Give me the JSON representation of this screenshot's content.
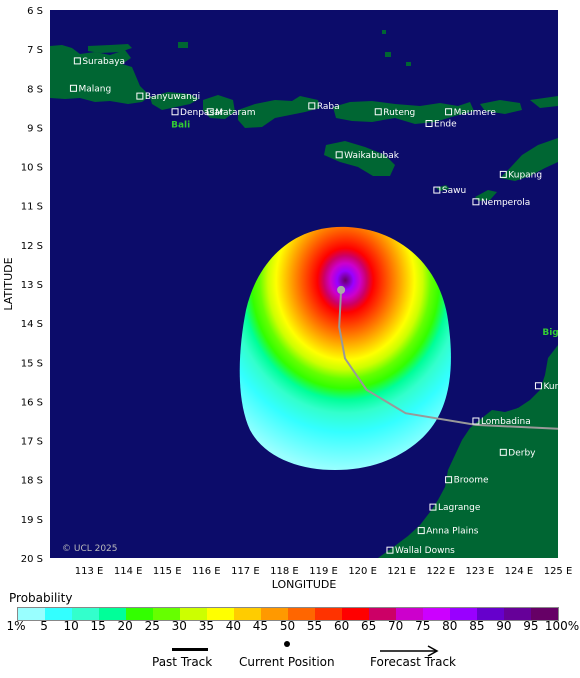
{
  "map": {
    "x_axis_title": "LONGITUDE",
    "y_axis_title": "LATITUDE",
    "lon_ticks": [
      "113 E",
      "114 E",
      "115 E",
      "116 E",
      "117 E",
      "118 E",
      "119 E",
      "120 E",
      "121 E",
      "122 E",
      "123 E",
      "124 E",
      "125 E"
    ],
    "lat_ticks": [
      "6 S",
      "7 S",
      "8 S",
      "9 S",
      "10 S",
      "11 S",
      "12 S",
      "13 S",
      "14 S",
      "15 S",
      "16 S",
      "17 S",
      "18 S",
      "19 S",
      "20 S"
    ],
    "copyright": "© UCL 2025",
    "places": [
      {
        "name": "Surabaya",
        "lon": 112.7,
        "lat": -7.3
      },
      {
        "name": "Malang",
        "lon": 112.6,
        "lat": -8.0
      },
      {
        "name": "Banyuwangi",
        "lon": 114.3,
        "lat": -8.2
      },
      {
        "name": "Denpasar",
        "lon": 115.2,
        "lat": -8.6
      },
      {
        "name": "Mataram",
        "lon": 116.1,
        "lat": -8.6
      },
      {
        "name": "Raba",
        "lon": 118.7,
        "lat": -8.45
      },
      {
        "name": "Ruteng",
        "lon": 120.4,
        "lat": -8.6
      },
      {
        "name": "Maumere",
        "lon": 122.2,
        "lat": -8.6
      },
      {
        "name": "Ende",
        "lon": 121.7,
        "lat": -8.9
      },
      {
        "name": "Waikabubak",
        "lon": 119.4,
        "lat": -9.7
      },
      {
        "name": "Kupang",
        "lon": 123.6,
        "lat": -10.2
      },
      {
        "name": "Sawu",
        "lon": 121.9,
        "lat": -10.6
      },
      {
        "name": "Nemperola",
        "lon": 122.9,
        "lat": -10.9
      },
      {
        "name": "Kuri Bay",
        "lon": 124.5,
        "lat": -15.6
      },
      {
        "name": "Lombadina",
        "lon": 122.9,
        "lat": -16.5
      },
      {
        "name": "Derby",
        "lon": 123.6,
        "lat": -17.3
      },
      {
        "name": "Broome",
        "lon": 122.2,
        "lat": -18.0
      },
      {
        "name": "Lagrange",
        "lon": 121.8,
        "lat": -18.7
      },
      {
        "name": "Anna Plains",
        "lon": 121.5,
        "lat": -19.3
      },
      {
        "name": "Wallal Downs",
        "lon": 120.7,
        "lat": -19.8
      }
    ],
    "regions": [
      {
        "name": "Bali",
        "lon": 115.1,
        "lat": -9.0
      },
      {
        "name": "Bigg",
        "lon": 124.6,
        "lat": -14.3
      }
    ],
    "current_position": {
      "lon": 119.45,
      "lat": -13.15
    },
    "past_track": [
      {
        "lon": 119.45,
        "lat": -13.15
      },
      {
        "lon": 119.4,
        "lat": -14.1
      },
      {
        "lon": 119.55,
        "lat": -14.9
      },
      {
        "lon": 120.1,
        "lat": -15.7
      },
      {
        "lon": 121.1,
        "lat": -16.3
      },
      {
        "lon": 122.9,
        "lat": -16.6
      },
      {
        "lon": 125.0,
        "lat": -16.7
      }
    ],
    "colors": {
      "ocean": "#0c0c6a",
      "land": "#006633",
      "track": "#999999",
      "place_marker": "#ffffff"
    }
  },
  "legend": {
    "title": "Probability",
    "tick_labels": [
      "1%",
      "5",
      "10",
      "15",
      "20",
      "25",
      "30",
      "35",
      "40",
      "45",
      "50",
      "55",
      "60",
      "65",
      "70",
      "75",
      "80",
      "85",
      "90",
      "95",
      "100%"
    ],
    "colors": [
      "#99ffff",
      "#33ffff",
      "#33ffcc",
      "#00ff99",
      "#33ff00",
      "#66ff00",
      "#ccff00",
      "#ffff00",
      "#ffcc00",
      "#ff9900",
      "#ff6600",
      "#ff3300",
      "#ff0000",
      "#cc0066",
      "#cc00cc",
      "#cc00ff",
      "#9900ff",
      "#6600cc",
      "#660099",
      "#660066"
    ]
  },
  "key": {
    "past_track_label": "Past Track",
    "current_position_label": "Current Position",
    "forecast_track_label": "Forecast Track"
  }
}
